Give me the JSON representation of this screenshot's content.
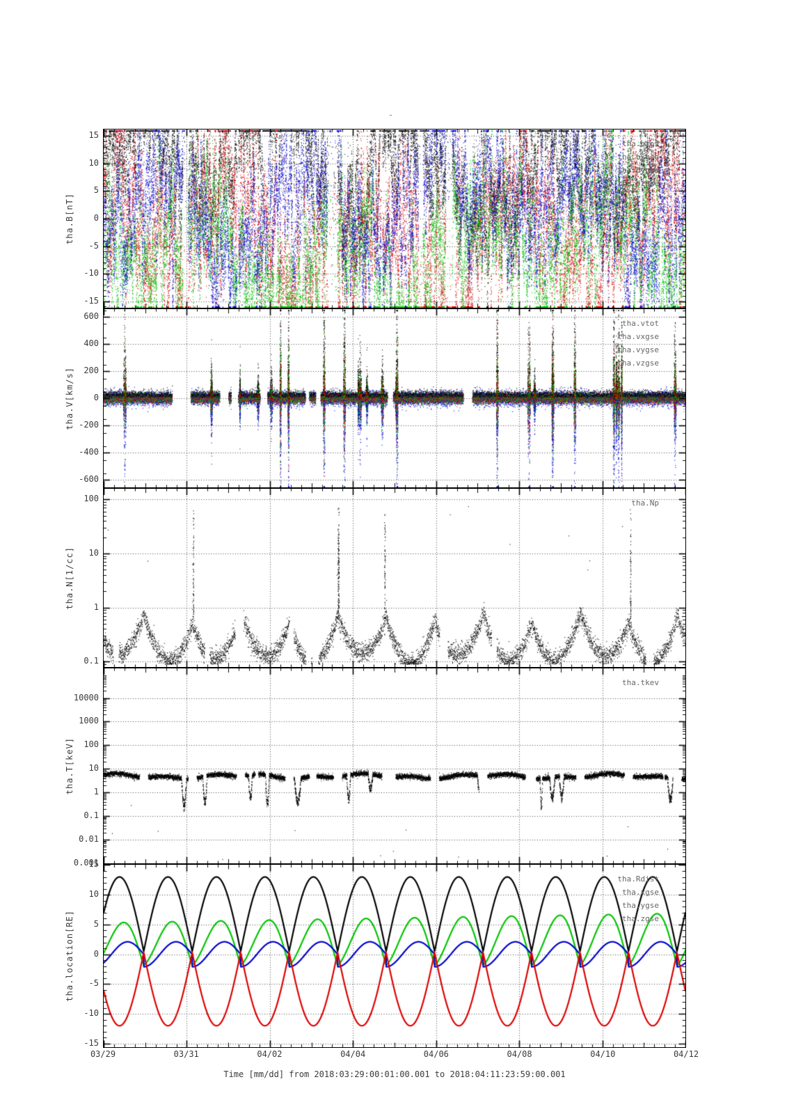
{
  "figure": {
    "top_dash": "-",
    "background": "#ffffff"
  },
  "colors": {
    "black": "#000000",
    "red": "#dd0000",
    "green": "#00c400",
    "blue": "#0000cc",
    "legend_text": "#666666",
    "axis_text": "#3a3a3a"
  },
  "xaxis": {
    "label": "Time [mm/dd]  from 2018:03:29:00:01:00.001  to  2018:04:11:23:59:00.001",
    "tick_labels": [
      "03/29",
      "03/31",
      "04/02",
      "04/04",
      "04/06",
      "04/08",
      "04/10",
      "04/12"
    ],
    "tick_days": [
      0,
      2,
      4,
      6,
      8,
      10,
      12,
      14
    ],
    "domain_days": [
      0,
      14
    ],
    "grid_days": [
      2,
      4,
      6,
      8,
      10,
      12
    ]
  },
  "chart_data": {
    "type": "scatter",
    "title": "",
    "panels": [
      {
        "id": "b",
        "ylabel": "tha.B[nT]",
        "yscale": "linear",
        "ymin": -16.2,
        "ymax": 16.2,
        "minor_step": 1,
        "yticks": [
          {
            "v": 15,
            "label": "15"
          },
          {
            "v": 10,
            "label": "10"
          },
          {
            "v": 5,
            "label": "5"
          },
          {
            "v": 0,
            "label": "0"
          },
          {
            "v": -5,
            "label": "-5"
          },
          {
            "v": -10,
            "label": "-10"
          },
          {
            "v": -15,
            "label": "-15"
          }
        ],
        "series": [
          {
            "name": "tha.btot",
            "color_key": "black"
          },
          {
            "name": "tha.bxgse",
            "color_key": "red"
          },
          {
            "name": "tha.bygse",
            "color_key": "green"
          },
          {
            "name": "tha.bzgse",
            "color_key": "blue"
          }
        ],
        "data_summary": "Very dense noisy magnetometer scatter filling the panel; values wander over the full -15..15 nT range with saturation pile-up along the +15/top edge; btot mostly near top, bxgse shows deep negative excursions, bygse mostly lower half, bzgse upper-middle streaks.",
        "gen": {
          "kind": "field",
          "seed": 101,
          "n": 10000,
          "centers": [
            10,
            -3,
            -6,
            3
          ],
          "vol": [
            1.0,
            1.5,
            1.25,
            1.3
          ],
          "clip": 16.0,
          "gapCount": 8
        }
      },
      {
        "id": "v",
        "ylabel": "tha.V[km/s]",
        "yscale": "linear",
        "ymin": -655,
        "ymax": 655,
        "minor_step": 100,
        "yticks": [
          {
            "v": 600,
            "label": "600"
          },
          {
            "v": 400,
            "label": "400"
          },
          {
            "v": 200,
            "label": "200"
          },
          {
            "v": 0,
            "label": "0"
          },
          {
            "v": -200,
            "label": "-200"
          },
          {
            "v": -400,
            "label": "-400"
          },
          {
            "v": -600,
            "label": "-600"
          }
        ],
        "series": [
          {
            "name": "tha.vtot",
            "color_key": "black"
          },
          {
            "name": "tha.vxgse",
            "color_key": "red"
          },
          {
            "name": "tha.vygse",
            "color_key": "green"
          },
          {
            "name": "tha.vzgse",
            "color_key": "blue"
          }
        ],
        "data_summary": "Tight multicolour band around 0 (roughly +/-80 km/s) broken into segments by data gaps; repeated tall vertical spike clusters reach +600 (vtot, black) and -600 (vzgse, blue).",
        "gen": {
          "kind": "velocity",
          "seed": 202,
          "n": 12000,
          "bandSigma": [
            20,
            16,
            17,
            26
          ],
          "bandOffset": [
            10,
            -2,
            0,
            0
          ],
          "eventCount": 26,
          "eventMaxAmp": 640,
          "clip": 648,
          "gapCount": 10,
          "period": 1.1667,
          "t0": -0.203
        }
      },
      {
        "id": "n",
        "ylabel": "tha.N[1/cc]",
        "yscale": "log",
        "ymin": 0.079,
        "ymax": 158,
        "yticks": [
          {
            "v": 100,
            "label": "100"
          },
          {
            "v": 10,
            "label": "10"
          },
          {
            "v": 1,
            "label": "1"
          },
          {
            "v": 0.1,
            "label": "0.1"
          }
        ],
        "series": [
          {
            "name": "tha.Np",
            "color_key": "black"
          }
        ],
        "data_summary": "Black density scatter mostly between 0.1 and 2 /cc forming arch-shaped clusters once per orbit; a few narrow vertical streaks rise to ~10-100 and rare isolated dots appear near the top.",
        "gen": {
          "kind": "density",
          "seed": 303,
          "n": 9000,
          "period": 1.1667,
          "t0": -0.203,
          "floor": 0.09,
          "topStreaks": 5,
          "gapCount": 10
        }
      },
      {
        "id": "t",
        "ylabel": "tha.T[keV]",
        "yscale": "log",
        "ymin": 0.001,
        "ymax": 180000,
        "yticks": [
          {
            "v": 10000,
            "label": "10000"
          },
          {
            "v": 1000,
            "label": "1000"
          },
          {
            "v": 100,
            "label": "100"
          },
          {
            "v": 10,
            "label": "10"
          },
          {
            "v": 1,
            "label": "1"
          },
          {
            "v": 0.1,
            "label": "0.1"
          },
          {
            "v": 0.01,
            "label": "0.01"
          },
          {
            "v": 0.001,
            "label": "0.001"
          }
        ],
        "series": [
          {
            "name": "tha.tkev",
            "color_key": "black"
          }
        ],
        "data_summary": "Black temperature band in segments near 4-7 keV (just below the 10 keV gridline) with V-shaped dips down to ~0.2-0.5 keV and sparse isolated points scattered between 0.001 and 0.1.",
        "gen": {
          "kind": "temperature",
          "seed": 404,
          "n": 9000,
          "period": 1.1667,
          "t0": -0.203,
          "base": 0.7,
          "dipCount": 14,
          "gapCount": 6
        }
      },
      {
        "id": "loc",
        "ylabel": "tha.location[RE]",
        "yscale": "linear",
        "ymin": -15.6,
        "ymax": 15.05,
        "minor_step": 1,
        "yticks": [
          {
            "v": 15,
            "label": "15"
          },
          {
            "v": 10,
            "label": "10"
          },
          {
            "v": 5,
            "label": "5"
          },
          {
            "v": 0,
            "label": "0"
          },
          {
            "v": -5,
            "label": "-5"
          },
          {
            "v": -10,
            "label": "-10"
          },
          {
            "v": -15,
            "label": "-15"
          }
        ],
        "series": [
          {
            "name": "tha.Rdist",
            "color_key": "black"
          },
          {
            "name": "tha.xgse",
            "color_key": "red"
          },
          {
            "name": "tha.ygse",
            "color_key": "green"
          },
          {
            "name": "tha.zgse",
            "color_key": "blue"
          }
        ],
        "data_summary": "Smooth orbital curves, ~12 orbits over 14 days: Rdist (black) arches between ~0.5 and ~13 RE; xgse (red) mirrors it down to ~-12 RE; ygse (green) sawtooths between ~-2 and ~5.5-7 RE; zgse (blue) oscillates between ~-2 and +2 RE.",
        "gen": {
          "kind": "orbit",
          "period": 1.1667,
          "t0": -0.203,
          "perigee": 0.5,
          "apogee": 13.0,
          "x_off": 0.8,
          "x_scale": 0.985,
          "y_min": -1.8,
          "y_peak_start": 5.3,
          "y_peak_end": 6.9,
          "z_amp": 2.1
        }
      }
    ]
  }
}
